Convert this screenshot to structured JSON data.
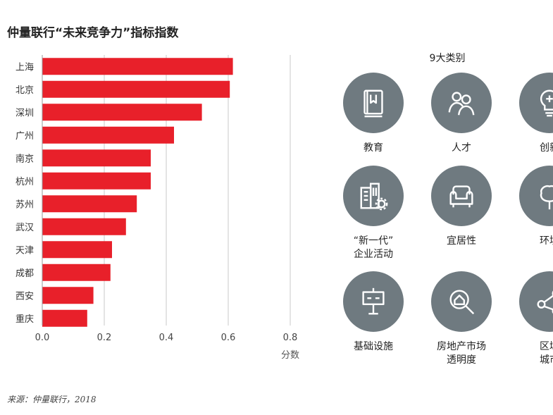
{
  "title": "仲量联行“未来竞争力”指标指数",
  "source": "来源：仲量联行，2018",
  "chart_data": {
    "type": "bar",
    "orientation": "horizontal",
    "categories": [
      "上海",
      "北京",
      "深圳",
      "广州",
      "南京",
      "杭州",
      "苏州",
      "武汉",
      "天津",
      "成都",
      "西安",
      "重庆"
    ],
    "values": [
      0.615,
      0.605,
      0.515,
      0.425,
      0.35,
      0.35,
      0.305,
      0.27,
      0.225,
      0.22,
      0.165,
      0.145
    ],
    "xlabel": "分数",
    "ylabel": "",
    "xlim": [
      0,
      0.8
    ],
    "xticks": [
      "0.0",
      "0.2",
      "0.4",
      "0.6",
      "0.8"
    ],
    "bar_color": "#e8202a",
    "grid": true
  },
  "categories_panel": {
    "title": "9大类别",
    "circle_color": "#6f7a80",
    "items": [
      {
        "label": "教育",
        "icon": "book-icon"
      },
      {
        "label": "人才",
        "icon": "people-icon"
      },
      {
        "label": "创新",
        "icon": "lightbulb-icon"
      },
      {
        "label": "“新一代”\n企业活动",
        "icon": "building-gear-icon"
      },
      {
        "label": "宜居性",
        "icon": "armchair-icon"
      },
      {
        "label": "环境",
        "icon": "tree-icon"
      },
      {
        "label": "基础设施",
        "icon": "signpost-icon"
      },
      {
        "label": "房地产市场\n透明度",
        "icon": "house-magnifier-icon"
      },
      {
        "label": "区域\n城市",
        "icon": "network-icon"
      }
    ]
  }
}
